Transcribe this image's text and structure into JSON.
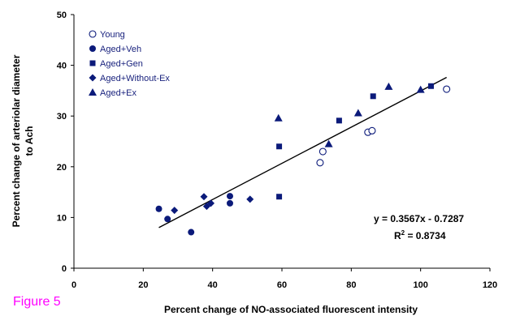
{
  "figure_label": "Figure 5",
  "chart_data": {
    "type": "scatter",
    "xlabel": "Percent change of NO-associated fluorescent intensity",
    "ylabel_lines": [
      "Percent change of arteriolar diameter",
      "to Ach"
    ],
    "xlim": [
      0,
      120
    ],
    "ylim": [
      0,
      50
    ],
    "xticks": [
      0,
      20,
      40,
      60,
      80,
      100,
      120
    ],
    "yticks": [
      0,
      10,
      20,
      30,
      40,
      50
    ],
    "grid": false,
    "legend_position": "top-left",
    "marker_color": "#0b1a7a",
    "series": [
      {
        "name": "Young",
        "marker": "open-circle",
        "points": [
          [
            71,
            20.8
          ],
          [
            71.8,
            23
          ],
          [
            84.8,
            26.8
          ],
          [
            86,
            27.1
          ],
          [
            107.5,
            35.3
          ]
        ]
      },
      {
        "name": "Aged+Veh",
        "marker": "filled-circle",
        "points": [
          [
            24.5,
            11.7
          ],
          [
            27,
            9.7
          ],
          [
            33.8,
            7.1
          ],
          [
            45,
            14.2
          ],
          [
            45,
            12.8
          ]
        ]
      },
      {
        "name": "Aged+Gen",
        "marker": "square",
        "points": [
          [
            59.2,
            24
          ],
          [
            59.2,
            14.1
          ],
          [
            76.5,
            29.1
          ],
          [
            86.3,
            33.9
          ],
          [
            103,
            35.9
          ]
        ]
      },
      {
        "name": "Aged+Without-Ex",
        "marker": "diamond",
        "points": [
          [
            29,
            11.4
          ],
          [
            37.5,
            14.1
          ],
          [
            38.3,
            12.2
          ],
          [
            39.5,
            12.8
          ],
          [
            50.8,
            13.6
          ]
        ]
      },
      {
        "name": "Aged+Ex",
        "marker": "triangle",
        "points": [
          [
            59,
            29.6
          ],
          [
            73.5,
            24.5
          ],
          [
            82,
            30.6
          ],
          [
            90.8,
            35.8
          ],
          [
            100,
            35.2
          ]
        ]
      }
    ],
    "trendline": {
      "slope": 0.3567,
      "intercept": -0.7287,
      "x_range": [
        24.5,
        107.5
      ]
    },
    "annotations": {
      "equation": "y = 0.3567x - 0.7287",
      "r2_prefix": "R",
      "r2_sup": "2",
      "r2_suffix": " = 0.8734"
    }
  }
}
